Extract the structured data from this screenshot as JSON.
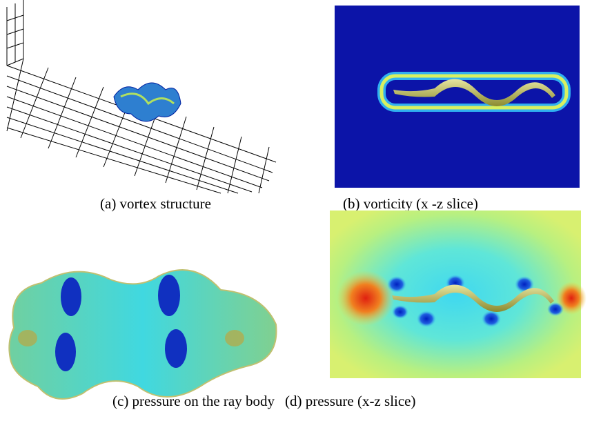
{
  "panels": [
    {
      "caption": "(a) vortex structure"
    },
    {
      "caption": "(b) vorticity (x -z slice)"
    },
    {
      "caption": "(c) pressure on the ray body"
    },
    {
      "caption": "(d) pressure (x-z slice)"
    }
  ]
}
